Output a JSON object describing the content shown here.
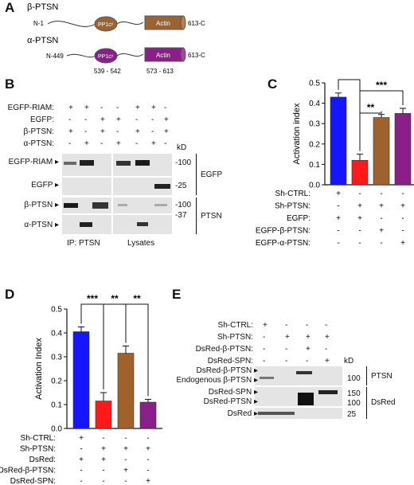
{
  "panelA": {
    "letter": "A",
    "beta": {
      "name": "β-PTSN",
      "n_term": "N-1",
      "pp1": "PP1cᵞ",
      "actin": "Actin",
      "c_term": "613-C",
      "color": "#9a6432"
    },
    "alpha": {
      "name": "α-PTSN",
      "n_term": "N-449",
      "pp1": "PP1cᵞ",
      "actin": "Actin",
      "c_term": "613-C",
      "color": "#8a1f8a",
      "pp1_range": "539 - 542",
      "actin_range": "573 - 613"
    }
  },
  "panelB": {
    "letter": "B",
    "row_labels": [
      "EGFP-RIAM:",
      "EGFP:",
      "β-PTSN:",
      "α-PTSN:"
    ],
    "lanes": [
      [
        "+",
        "+",
        "-",
        "-",
        "+",
        "+",
        "-"
      ],
      [
        "-",
        "-",
        "+",
        "+",
        "-",
        "-",
        "+"
      ],
      [
        "+",
        "-",
        "+",
        "-",
        "+",
        "-",
        "+"
      ],
      [
        "-",
        "+",
        "-",
        "+",
        "-",
        "+",
        "-"
      ]
    ],
    "kd_label": "kD",
    "blot_labels": [
      "EGFP-RIAM",
      "EGFP",
      "β-PTSN",
      "α-PTSN"
    ],
    "markers": [
      "-100",
      "-25",
      "-100",
      "-37"
    ],
    "groups": [
      "EGFP",
      "PTSN"
    ],
    "bottom_labels": [
      "IP: PTSN",
      "Lysates"
    ]
  },
  "panelC": {
    "letter": "C",
    "chart_data": {
      "type": "bar",
      "ylabel": "Activation index",
      "ylim": [
        0,
        0.5
      ],
      "yticks": [
        "0.0",
        "0.1",
        "0.2",
        "0.3",
        "0.4",
        "0.5"
      ],
      "values": [
        0.43,
        0.12,
        0.33,
        0.35
      ],
      "errors": [
        0.02,
        0.03,
        0.015,
        0.025
      ],
      "colors": [
        "#1515ff",
        "#ff1a1a",
        "#a0622d",
        "#8a1f8a"
      ],
      "significance": [
        "***",
        "**",
        "***"
      ],
      "condition_labels": [
        "Sh-CTRL:",
        "Sh-PTSN:",
        "EGFP:",
        "EGFP-β-PTSN:",
        "EGFP-α-PTSN:"
      ],
      "condition_signs": [
        [
          "+",
          "-",
          "-",
          "-"
        ],
        [
          "-",
          "+",
          "+",
          "+"
        ],
        [
          "+",
          "+",
          "-",
          "-"
        ],
        [
          "-",
          "-",
          "+",
          "-"
        ],
        [
          "-",
          "-",
          "-",
          "+"
        ]
      ]
    }
  },
  "panelD": {
    "letter": "D",
    "chart_data": {
      "type": "bar",
      "ylabel": "Activation Index",
      "ylim": [
        0,
        0.5
      ],
      "yticks": [
        "0.0",
        "0.1",
        "0.2",
        "0.3",
        "0.4",
        "0.5"
      ],
      "values": [
        0.405,
        0.115,
        0.315,
        0.11
      ],
      "errors": [
        0.02,
        0.035,
        0.03,
        0.012
      ],
      "colors": [
        "#1515ff",
        "#ff1a1a",
        "#a0622d",
        "#8a1f8a"
      ],
      "significance": [
        "***",
        "**",
        "**"
      ],
      "condition_labels": [
        "Sh-CTRL:",
        "Sh-PTSN:",
        "DsRed:",
        "DsRed-β-PTSN:",
        "DsRed-SPN:"
      ],
      "condition_signs": [
        [
          "+",
          "-",
          "-",
          "-"
        ],
        [
          "-",
          "+",
          "+",
          "+"
        ],
        [
          "+",
          "+",
          "-",
          "-"
        ],
        [
          "-",
          "-",
          "+",
          "-"
        ],
        [
          "-",
          "-",
          "-",
          "+"
        ]
      ]
    }
  },
  "panelE": {
    "letter": "E",
    "row_labels": [
      "Sh-CTRL:",
      "Sh-PTSN:",
      "DsRed-β-PTSN:",
      "DsRed-SPN:"
    ],
    "lanes": [
      [
        "+",
        "-",
        "-",
        "-"
      ],
      [
        "-",
        "+",
        "+",
        "+"
      ],
      [
        "-",
        "-",
        "+",
        "-"
      ],
      [
        "-",
        "-",
        "-",
        "+"
      ]
    ],
    "kd_label": "kD",
    "blot_labels": [
      "DsRed-β-PTSN",
      "Endogenous β-PTSN",
      "DsRed-SPN",
      "DsRed-PTSN",
      "DsRed"
    ],
    "markers": [
      "100",
      "150",
      "100",
      "25"
    ],
    "groups": [
      "PTSN",
      "DsRed"
    ]
  }
}
